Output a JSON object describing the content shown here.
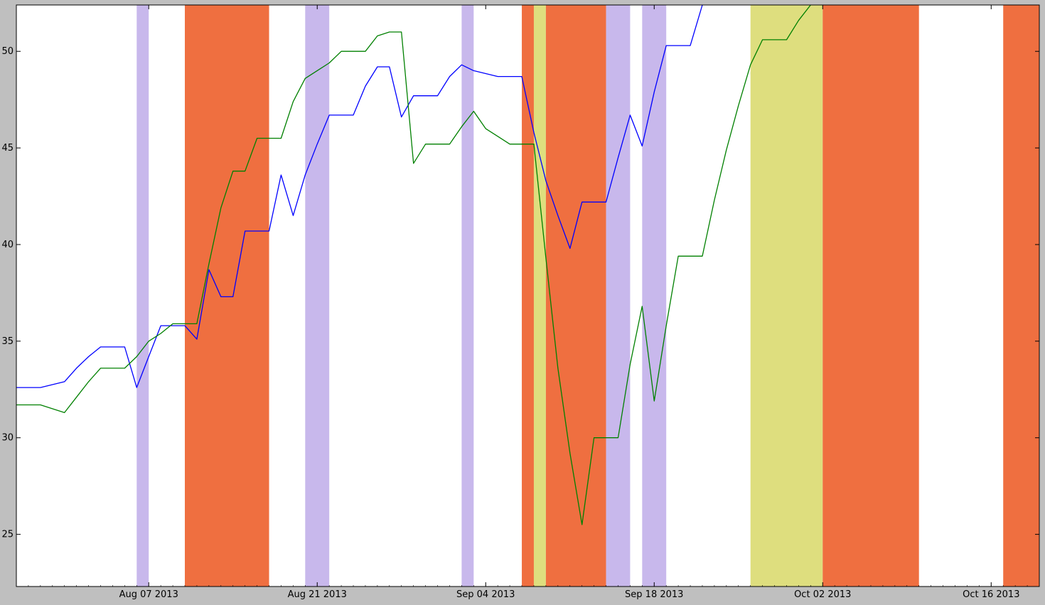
{
  "chart_data": {
    "type": "line",
    "title": "",
    "xlabel": "",
    "ylabel": "",
    "x_range": [
      "2013-07-27",
      "2013-10-20"
    ],
    "ylim": [
      22.3,
      52.4
    ],
    "y_ticks": [
      25,
      30,
      35,
      40,
      45,
      50
    ],
    "x_ticks": [
      {
        "date": "2013-08-07",
        "label": "Aug 07 2013"
      },
      {
        "date": "2013-08-21",
        "label": "Aug 21 2013"
      },
      {
        "date": "2013-09-04",
        "label": "Sep 04 2013"
      },
      {
        "date": "2013-09-18",
        "label": "Sep 18 2013"
      },
      {
        "date": "2013-10-02",
        "label": "Oct 02 2013"
      },
      {
        "date": "2013-10-16",
        "label": "Oct 16 2013"
      }
    ],
    "grid": false,
    "legend": "none",
    "colors": {
      "background": "#bfbfbf",
      "plot_bg": "#ffffff",
      "series_1": "#0000ff",
      "series_2": "#008000",
      "band_purple": "#c8b8ec",
      "band_orange": "#ef6f40",
      "band_yellow": "#dede7e"
    },
    "bands": [
      {
        "start": "2013-08-06",
        "end": "2013-08-07",
        "color": "purple"
      },
      {
        "start": "2013-08-10",
        "end": "2013-08-17",
        "color": "orange"
      },
      {
        "start": "2013-08-20",
        "end": "2013-08-22",
        "color": "purple"
      },
      {
        "start": "2013-09-02",
        "end": "2013-09-03",
        "color": "purple"
      },
      {
        "start": "2013-09-07",
        "end": "2013-09-08",
        "color": "orange"
      },
      {
        "start": "2013-09-08",
        "end": "2013-09-09",
        "color": "yellow"
      },
      {
        "start": "2013-09-09",
        "end": "2013-09-14",
        "color": "orange"
      },
      {
        "start": "2013-09-14",
        "end": "2013-09-16",
        "color": "purple"
      },
      {
        "start": "2013-09-17",
        "end": "2013-09-19",
        "color": "purple"
      },
      {
        "start": "2013-09-26",
        "end": "2013-10-02",
        "color": "yellow"
      },
      {
        "start": "2013-10-02",
        "end": "2013-10-10",
        "color": "orange"
      },
      {
        "start": "2013-10-17",
        "end": "2013-10-20",
        "color": "orange"
      }
    ],
    "series": [
      {
        "color": "blue",
        "points": [
          [
            "2013-07-27",
            32.6
          ],
          [
            "2013-07-29",
            32.6
          ],
          [
            "2013-07-31",
            32.9
          ],
          [
            "2013-08-01",
            33.6
          ],
          [
            "2013-08-02",
            34.2
          ],
          [
            "2013-08-03",
            34.7
          ],
          [
            "2013-08-05",
            34.7
          ],
          [
            "2013-08-06",
            32.6
          ],
          [
            "2013-08-07",
            34.2
          ],
          [
            "2013-08-08",
            35.8
          ],
          [
            "2013-08-10",
            35.8
          ],
          [
            "2013-08-11",
            35.1
          ],
          [
            "2013-08-12",
            38.7
          ],
          [
            "2013-08-13",
            37.3
          ],
          [
            "2013-08-14",
            37.3
          ],
          [
            "2013-08-15",
            40.7
          ],
          [
            "2013-08-17",
            40.7
          ],
          [
            "2013-08-18",
            43.6
          ],
          [
            "2013-08-19",
            41.5
          ],
          [
            "2013-08-20",
            43.6
          ],
          [
            "2013-08-21",
            45.2
          ],
          [
            "2013-08-22",
            46.7
          ],
          [
            "2013-08-24",
            46.7
          ],
          [
            "2013-08-25",
            48.2
          ],
          [
            "2013-08-26",
            49.2
          ],
          [
            "2013-08-27",
            49.2
          ],
          [
            "2013-08-28",
            46.6
          ],
          [
            "2013-08-29",
            47.7
          ],
          [
            "2013-08-31",
            47.7
          ],
          [
            "2013-09-01",
            48.7
          ],
          [
            "2013-09-02",
            49.3
          ],
          [
            "2013-09-03",
            49.0
          ],
          [
            "2013-09-05",
            48.7
          ],
          [
            "2013-09-07",
            48.7
          ],
          [
            "2013-09-08",
            45.8
          ],
          [
            "2013-09-09",
            43.3
          ],
          [
            "2013-09-10",
            41.5
          ],
          [
            "2013-09-11",
            39.8
          ],
          [
            "2013-09-12",
            42.2
          ],
          [
            "2013-09-14",
            42.2
          ],
          [
            "2013-09-15",
            44.5
          ],
          [
            "2013-09-16",
            46.7
          ],
          [
            "2013-09-17",
            45.1
          ],
          [
            "2013-09-18",
            47.9
          ],
          [
            "2013-09-19",
            50.3
          ],
          [
            "2013-09-21",
            50.3
          ],
          [
            "2013-09-22",
            52.4
          ]
        ]
      },
      {
        "color": "green",
        "points": [
          [
            "2013-07-27",
            31.7
          ],
          [
            "2013-07-29",
            31.7
          ],
          [
            "2013-07-31",
            31.3
          ],
          [
            "2013-08-01",
            32.1
          ],
          [
            "2013-08-02",
            32.9
          ],
          [
            "2013-08-03",
            33.6
          ],
          [
            "2013-08-05",
            33.6
          ],
          [
            "2013-08-06",
            34.2
          ],
          [
            "2013-08-07",
            35.0
          ],
          [
            "2013-08-08",
            35.4
          ],
          [
            "2013-08-09",
            35.9
          ],
          [
            "2013-08-11",
            35.9
          ],
          [
            "2013-08-12",
            39.0
          ],
          [
            "2013-08-13",
            41.9
          ],
          [
            "2013-08-14",
            43.8
          ],
          [
            "2013-08-15",
            43.8
          ],
          [
            "2013-08-16",
            45.5
          ],
          [
            "2013-08-18",
            45.5
          ],
          [
            "2013-08-19",
            47.4
          ],
          [
            "2013-08-20",
            48.6
          ],
          [
            "2013-08-21",
            49.0
          ],
          [
            "2013-08-22",
            49.4
          ],
          [
            "2013-08-23",
            50.0
          ],
          [
            "2013-08-25",
            50.0
          ],
          [
            "2013-08-26",
            50.8
          ],
          [
            "2013-08-27",
            51.0
          ],
          [
            "2013-08-28",
            51.0
          ],
          [
            "2013-08-29",
            44.2
          ],
          [
            "2013-08-30",
            45.2
          ],
          [
            "2013-09-01",
            45.2
          ],
          [
            "2013-09-02",
            46.1
          ],
          [
            "2013-09-03",
            46.9
          ],
          [
            "2013-09-04",
            46.0
          ],
          [
            "2013-09-05",
            45.6
          ],
          [
            "2013-09-06",
            45.2
          ],
          [
            "2013-09-08",
            45.2
          ],
          [
            "2013-09-09",
            39.3
          ],
          [
            "2013-09-10",
            33.6
          ],
          [
            "2013-09-11",
            29.2
          ],
          [
            "2013-09-12",
            25.5
          ],
          [
            "2013-09-13",
            30.0
          ],
          [
            "2013-09-15",
            30.0
          ],
          [
            "2013-09-16",
            33.8
          ],
          [
            "2013-09-17",
            36.8
          ],
          [
            "2013-09-18",
            31.9
          ],
          [
            "2013-09-19",
            35.8
          ],
          [
            "2013-09-20",
            39.4
          ],
          [
            "2013-09-22",
            39.4
          ],
          [
            "2013-09-23",
            42.3
          ],
          [
            "2013-09-24",
            44.9
          ],
          [
            "2013-09-25",
            47.2
          ],
          [
            "2013-09-26",
            49.3
          ],
          [
            "2013-09-27",
            50.6
          ],
          [
            "2013-09-29",
            50.6
          ],
          [
            "2013-09-30",
            51.6
          ],
          [
            "2013-10-01",
            52.4
          ]
        ]
      }
    ]
  }
}
